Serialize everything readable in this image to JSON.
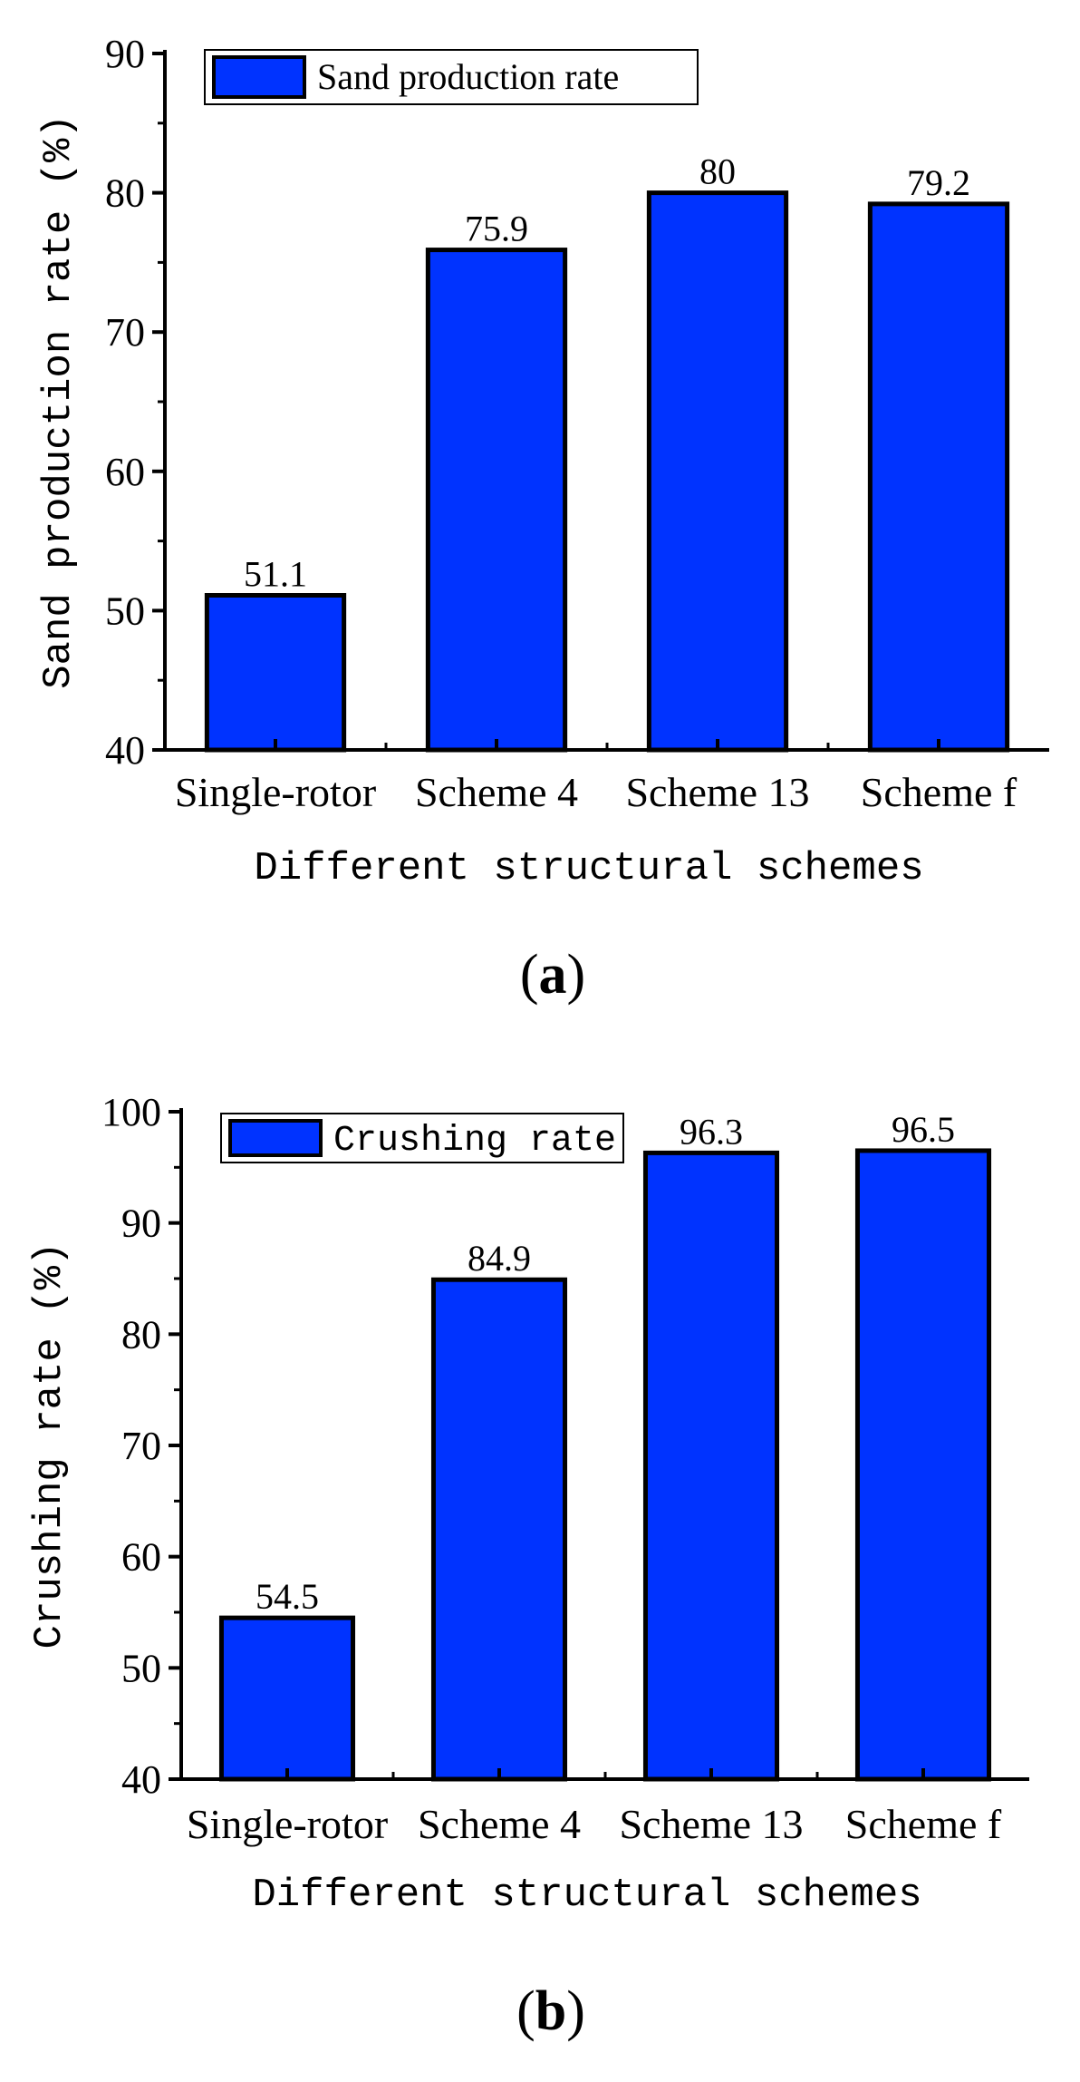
{
  "chart_data": [
    {
      "type": "bar",
      "categories": [
        "Single-rotor",
        "Scheme 4",
        "Scheme 13",
        "Scheme f"
      ],
      "values": [
        51.1,
        75.9,
        80,
        79.2
      ],
      "data_labels": [
        "51.1",
        "75.9",
        "80",
        "79.2"
      ],
      "title": "",
      "xlabel": "Different structural schemes",
      "ylabel": "Sand production rate (%)",
      "ylim": [
        40,
        90
      ],
      "yticks": [
        40,
        50,
        60,
        70,
        80,
        90
      ],
      "ytick_labels": [
        "40",
        "50",
        "60",
        "70",
        "80",
        "90"
      ],
      "legend": [
        "Sand production rate"
      ],
      "legend_position": "top-left",
      "bar_color": "#0033ff",
      "grid": false,
      "panel_label": "a"
    },
    {
      "type": "bar",
      "categories": [
        "Single-rotor",
        "Scheme 4",
        "Scheme 13",
        "Scheme f"
      ],
      "values": [
        54.5,
        84.9,
        96.3,
        96.5
      ],
      "data_labels": [
        "54.5",
        "84.9",
        "96.3",
        "96.5"
      ],
      "title": "",
      "xlabel": "Different structural schemes",
      "ylabel": "Crushing rate (%)",
      "ylim": [
        40,
        100
      ],
      "yticks": [
        40,
        50,
        60,
        70,
        80,
        90,
        100
      ],
      "ytick_labels": [
        "40",
        "50",
        "60",
        "70",
        "80",
        "90",
        "100"
      ],
      "legend": [
        "Crushing rate"
      ],
      "legend_position": "top-left",
      "bar_color": "#0033ff",
      "grid": false,
      "panel_label": "b"
    }
  ]
}
